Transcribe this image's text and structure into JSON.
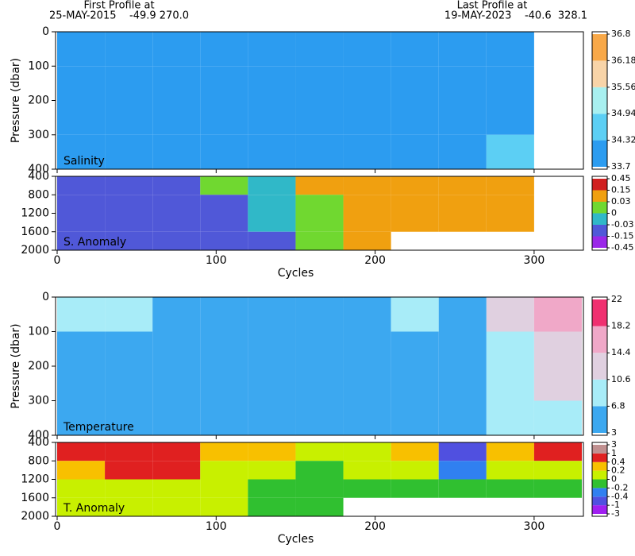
{
  "header": {
    "first_label": "First Profile at",
    "first_value": "25-MAY-2015    -49.9 270.0",
    "last_label": "Last Profile at",
    "last_value": "19-MAY-2023    -40.6  328.1"
  },
  "chart_data": [
    {
      "type": "heatmap",
      "label": "Salinity",
      "ylabel": "Pressure (dbar)",
      "xlim": [
        -1,
        331
      ],
      "xticks": [
        0,
        100,
        200,
        300
      ],
      "ylim": [
        400,
        0
      ],
      "yticks": [
        0,
        100,
        200,
        300,
        400
      ],
      "xbins": [
        0,
        30,
        60,
        90,
        120,
        150,
        180,
        210,
        240,
        270,
        300,
        330
      ],
      "ybins": [
        0,
        100,
        200,
        300,
        400
      ],
      "values": [
        [
          34.2,
          34.2,
          34.2,
          34.2,
          34.2,
          34.2,
          34.2,
          34.2,
          34.2,
          34.3,
          null
        ],
        [
          34.2,
          34.2,
          34.2,
          34.2,
          34.2,
          34.2,
          34.2,
          34.2,
          34.2,
          34.3,
          null
        ],
        [
          34.2,
          34.2,
          34.2,
          34.2,
          34.2,
          34.2,
          34.2,
          34.2,
          34.2,
          34.3,
          null
        ],
        [
          34.2,
          34.2,
          34.2,
          34.2,
          34.2,
          34.2,
          34.2,
          34.2,
          34.2,
          34.4,
          null
        ]
      ],
      "colorbar": {
        "levels": [
          33.7,
          34.32,
          34.94,
          35.56,
          36.18,
          36.8
        ],
        "colors": [
          "#2c9cf0",
          "#5ccff4",
          "#a8f0f0",
          "#f8d4a8",
          "#f8a848"
        ]
      }
    },
    {
      "type": "heatmap",
      "label": "S. Anomaly",
      "xlabel": "Cycles",
      "xlim": [
        -1,
        331
      ],
      "xticks": [
        0,
        100,
        200,
        300
      ],
      "ylim": [
        2000,
        400
      ],
      "yticks": [
        400,
        800,
        1200,
        1600,
        2000
      ],
      "xbins": [
        0,
        30,
        60,
        90,
        120,
        150,
        180,
        210,
        240,
        270,
        300,
        330
      ],
      "ybins": [
        400,
        800,
        1200,
        1600,
        2000
      ],
      "values": [
        [
          -0.05,
          -0.05,
          -0.04,
          0.01,
          -0.01,
          0.08,
          0.1,
          0.1,
          0.1,
          0.1,
          null
        ],
        [
          -0.1,
          -0.1,
          -0.08,
          -0.05,
          -0.02,
          0.02,
          0.1,
          0.1,
          0.1,
          0.08,
          null
        ],
        [
          -0.1,
          -0.1,
          -0.1,
          -0.06,
          -0.03,
          0.01,
          0.1,
          0.1,
          0.1,
          0.1,
          null
        ],
        [
          -0.1,
          -0.1,
          -0.1,
          -0.08,
          -0.04,
          0.01,
          0.08,
          null,
          null,
          null,
          null
        ]
      ],
      "colorbar": {
        "levels": [
          -0.45,
          -0.15,
          -0.03,
          0,
          0.03,
          0.15,
          0.45
        ],
        "colors": [
          "#9a28e8",
          "#5058d8",
          "#30b8c8",
          "#70d830",
          "#f0a010",
          "#d02020"
        ]
      }
    },
    {
      "type": "heatmap",
      "label": "Temperature",
      "ylabel": "Pressure (dbar)",
      "xlim": [
        -1,
        331
      ],
      "xticks": [
        0,
        100,
        200,
        300
      ],
      "ylim": [
        400,
        0
      ],
      "yticks": [
        0,
        100,
        200,
        300,
        400
      ],
      "xbins": [
        0,
        30,
        60,
        90,
        120,
        150,
        180,
        210,
        240,
        270,
        300,
        330
      ],
      "ybins": [
        0,
        100,
        200,
        300,
        400
      ],
      "values": [
        [
          7,
          7,
          6,
          6,
          5,
          5,
          6,
          7,
          6,
          12,
          15
        ],
        [
          6,
          6,
          6,
          5.5,
          5,
          5,
          5.5,
          5.5,
          5.5,
          10,
          13
        ],
        [
          5.5,
          5.5,
          5.5,
          5,
          5,
          5,
          5,
          5,
          5,
          9,
          11
        ],
        [
          5,
          5,
          5,
          5,
          5,
          5,
          5,
          5,
          4.5,
          8,
          9
        ]
      ],
      "colorbar": {
        "levels": [
          3,
          6.8,
          10.6,
          14.4,
          18.2,
          22
        ],
        "colors": [
          "#3ca8f0",
          "#a8ecf8",
          "#e0d0e0",
          "#f0a8c8",
          "#f03070"
        ]
      }
    },
    {
      "type": "heatmap",
      "label": "T. Anomaly",
      "xlabel": "Cycles",
      "xlim": [
        -1,
        331
      ],
      "xticks": [
        0,
        100,
        200,
        300
      ],
      "ylim": [
        2000,
        400
      ],
      "yticks": [
        400,
        800,
        1200,
        1600,
        2000
      ],
      "xbins": [
        0,
        30,
        60,
        90,
        120,
        150,
        180,
        210,
        240,
        270,
        300,
        330
      ],
      "ybins": [
        400,
        800,
        1200,
        1600,
        2000
      ],
      "values": [
        [
          0.5,
          0.6,
          0.5,
          0.3,
          0.2,
          0.1,
          0.1,
          0.2,
          -0.5,
          0.3,
          0.4
        ],
        [
          0.3,
          0.4,
          0.4,
          0.1,
          0,
          -0.1,
          0,
          0,
          -0.3,
          0,
          0.1
        ],
        [
          0.1,
          0.1,
          0.1,
          0,
          -0.1,
          -0.1,
          -0.1,
          -0.1,
          -0.1,
          -0.1,
          -0.1
        ],
        [
          0.1,
          0.1,
          0.05,
          0,
          -0.1,
          -0.1,
          null,
          null,
          null,
          null,
          null
        ]
      ],
      "colorbar": {
        "levels": [
          -3,
          -1,
          -0.4,
          -0.2,
          0,
          0.2,
          0.4,
          1,
          3
        ],
        "colors": [
          "#a020f0",
          "#5050e0",
          "#3080f0",
          "#30c030",
          "#c8f000",
          "#f8c000",
          "#e02020",
          "#c09090"
        ]
      }
    }
  ]
}
